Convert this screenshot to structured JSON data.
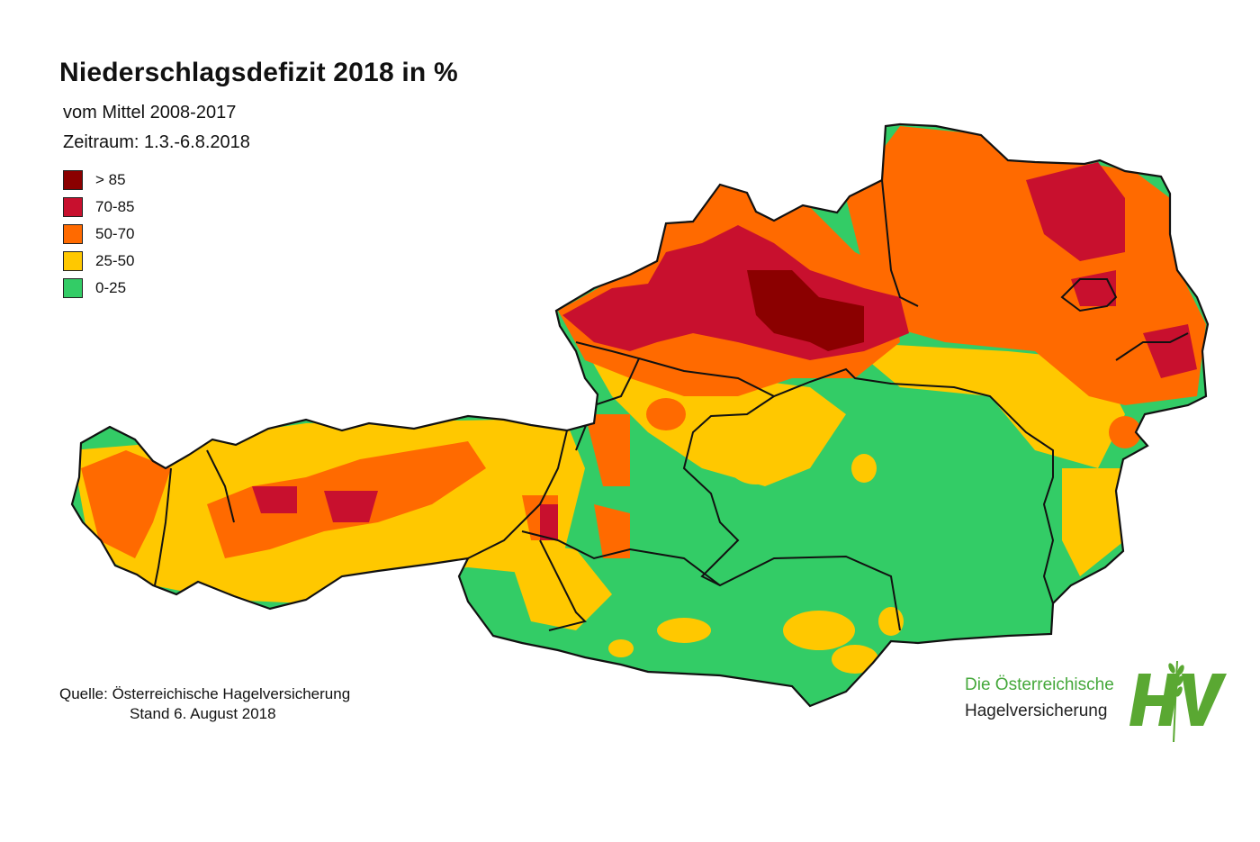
{
  "title": "Niederschlagsdefizit 2018 in %",
  "subtitle1": "vom Mittel 2008-2017",
  "subtitle2": "Zeitraum: 1.3.-6.8.2018",
  "legend": [
    {
      "label": "> 85",
      "color": "#8b0000"
    },
    {
      "label": "70-85",
      "color": "#c8102e"
    },
    {
      "label": "50-70",
      "color": "#ff6a00"
    },
    {
      "label": "25-50",
      "color": "#ffc800"
    },
    {
      "label": "0-25",
      "color": "#33cc66"
    }
  ],
  "source": {
    "line1": "Quelle: Österreichische Hagelversicherung",
    "line2": "Stand 6. August 2018"
  },
  "brand": {
    "line1": "Die Österreichische",
    "line2": "Hagelversicherung",
    "logo_text": "HV",
    "color": "#5aa832"
  }
}
